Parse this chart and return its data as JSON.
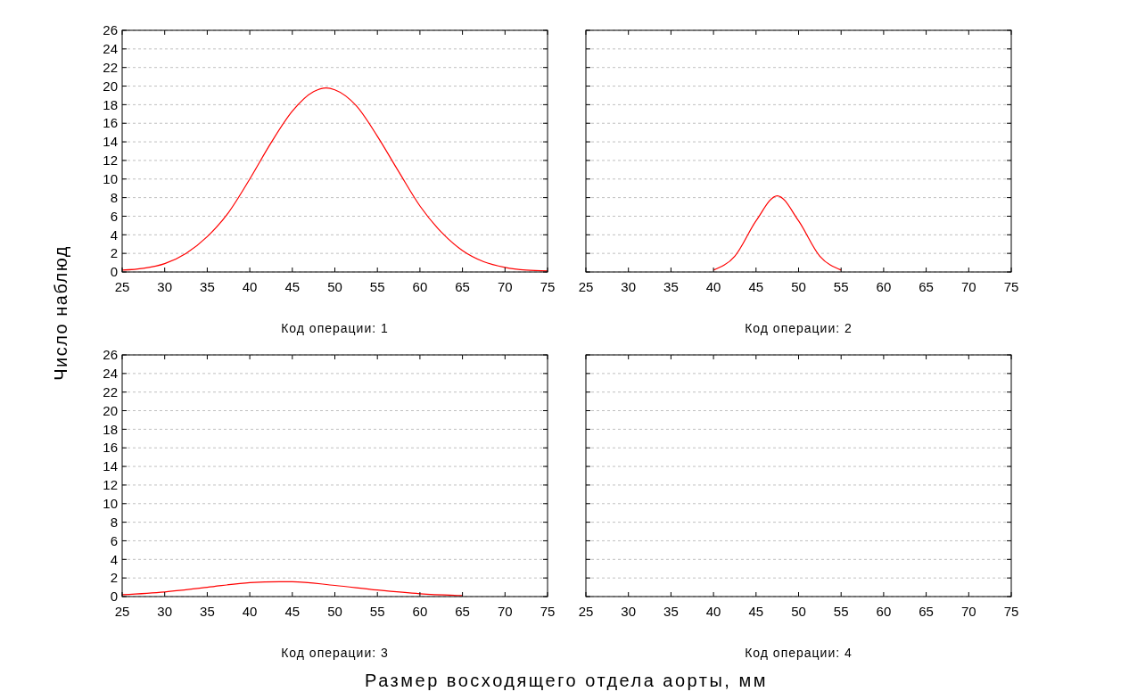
{
  "chart_data": [
    {
      "type": "line",
      "xlabel": "Код операции: 1",
      "ylabel": "Число наблюд",
      "xlim": [
        25,
        75
      ],
      "xticks": [
        25,
        30,
        35,
        40,
        45,
        50,
        55,
        60,
        65,
        70,
        75
      ],
      "ylim": [
        0,
        26
      ],
      "yticks": [
        0,
        2,
        4,
        6,
        8,
        10,
        12,
        14,
        16,
        18,
        20,
        22,
        24,
        26
      ],
      "grid": "y",
      "series": [
        {
          "color": "#ff0000",
          "x": [
            25,
            27.5,
            30,
            32.5,
            35,
            37.5,
            40,
            42.5,
            45,
            47.5,
            49,
            50,
            52.5,
            55,
            57.5,
            60,
            62.5,
            65,
            67.5,
            70,
            72.5,
            75
          ],
          "values": [
            0.2,
            0.4,
            0.9,
            2.0,
            3.8,
            6.4,
            10.0,
            13.9,
            17.3,
            19.4,
            19.8,
            19.6,
            17.9,
            14.6,
            10.8,
            7.1,
            4.3,
            2.3,
            1.1,
            0.5,
            0.2,
            0.1
          ]
        }
      ]
    },
    {
      "type": "line",
      "xlabel": "Код операции: 2",
      "xlim": [
        25,
        75
      ],
      "xticks": [
        25,
        30,
        35,
        40,
        45,
        50,
        55,
        60,
        65,
        70,
        75
      ],
      "ylim": [
        0,
        26
      ],
      "yticks": [
        0,
        2,
        4,
        6,
        8,
        10,
        12,
        14,
        16,
        18,
        20,
        22,
        24,
        26
      ],
      "grid": "y",
      "tick_labels": "x",
      "series": [
        {
          "color": "#ff0000",
          "x": [
            40,
            42.5,
            45,
            47.5,
            50,
            52.5,
            55
          ],
          "values": [
            0.2,
            1.7,
            5.5,
            8.2,
            5.5,
            1.7,
            0.2
          ]
        }
      ]
    },
    {
      "type": "line",
      "xlabel": "Код операции: 3",
      "annotations": [
        "Размер восходящего отдела аорты, мм"
      ],
      "xlim": [
        25,
        75
      ],
      "xticks": [
        25,
        30,
        35,
        40,
        45,
        50,
        55,
        60,
        65,
        70,
        75
      ],
      "ylim": [
        0,
        26
      ],
      "yticks": [
        0,
        2,
        4,
        6,
        8,
        10,
        12,
        14,
        16,
        18,
        20,
        22,
        24,
        26
      ],
      "grid": "y",
      "series": [
        {
          "color": "#ff0000",
          "x": [
            25,
            30,
            35,
            40,
            43.5,
            45,
            50,
            55,
            60,
            65
          ],
          "values": [
            0.2,
            0.5,
            1.0,
            1.5,
            1.6,
            1.6,
            1.2,
            0.7,
            0.3,
            0.1
          ]
        }
      ]
    },
    {
      "type": "line",
      "xlabel": "Код операции: 4",
      "xlim": [
        25,
        75
      ],
      "xticks": [
        25,
        30,
        35,
        40,
        45,
        50,
        55,
        60,
        65,
        70,
        75
      ],
      "ylim": [
        0,
        26
      ],
      "yticks": [
        0,
        2,
        4,
        6,
        8,
        10,
        12,
        14,
        16,
        18,
        20,
        22,
        24,
        26
      ],
      "grid": "y",
      "tick_labels": "x"
    }
  ]
}
